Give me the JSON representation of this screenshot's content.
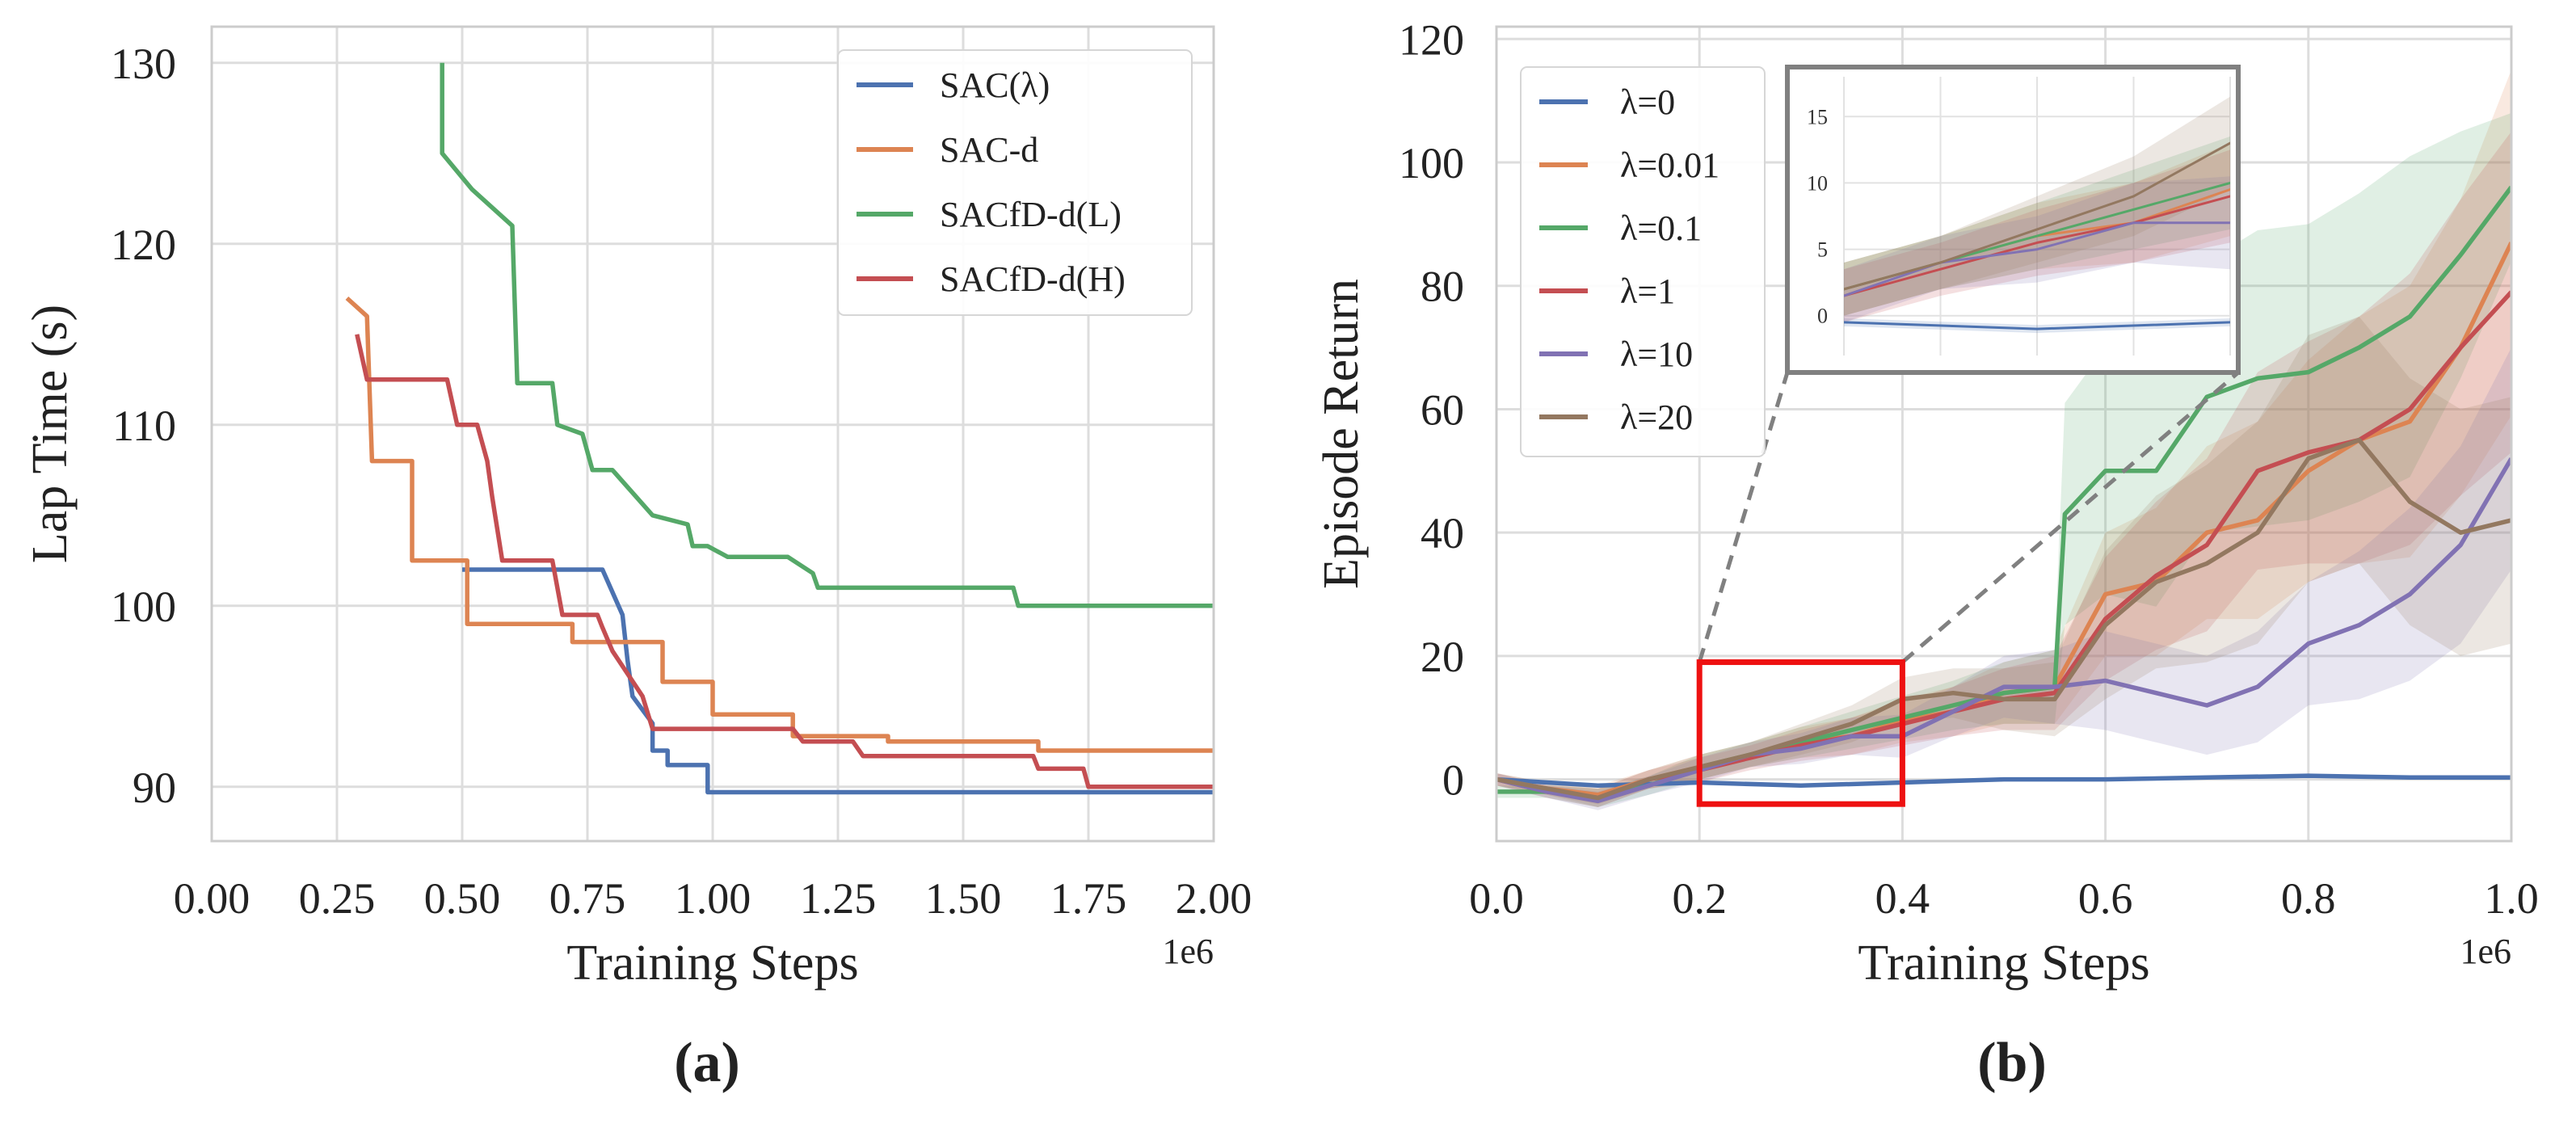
{
  "chart_data": [
    {
      "type": "line",
      "panel_label": "(a)",
      "xlabel": "Training Steps",
      "ylabel": "Lap Time (s)",
      "x_offset_text": "1e6",
      "xlim": [
        0,
        2.0
      ],
      "ylim": [
        87,
        132
      ],
      "x_ticks": [
        "0.00",
        "0.25",
        "0.50",
        "0.75",
        "1.00",
        "1.25",
        "1.50",
        "1.75",
        "2.00"
      ],
      "y_ticks": [
        "90",
        "100",
        "110",
        "120",
        "130"
      ],
      "grid": true,
      "legend_position": "upper right",
      "series": [
        {
          "name": "SAC(λ)",
          "color": "#4c72b0",
          "x": [
            0.5,
            0.78,
            0.82,
            0.83,
            0.84,
            0.88,
            0.88,
            0.91,
            0.91,
            0.99,
            0.99,
            2.0
          ],
          "y": [
            102,
            102,
            99.5,
            97,
            95,
            93.5,
            92,
            92,
            91.2,
            91.2,
            89.7,
            89.7
          ]
        },
        {
          "name": "SAC-d",
          "color": "#dd8452",
          "x": [
            0.27,
            0.31,
            0.32,
            0.4,
            0.4,
            0.51,
            0.51,
            0.72,
            0.72,
            0.9,
            0.9,
            1.0,
            1.0,
            1.16,
            1.16,
            1.35,
            1.35,
            1.65,
            1.65,
            2.0
          ],
          "y": [
            117,
            116,
            108,
            108,
            102.5,
            102.5,
            99,
            99,
            98,
            98,
            95.8,
            95.8,
            94,
            94,
            92.8,
            92.8,
            92.5,
            92.5,
            92,
            92
          ]
        },
        {
          "name": "SACfD-d(L)",
          "color": "#55a868",
          "x": [
            0.46,
            0.46,
            0.52,
            0.6,
            0.61,
            0.68,
            0.69,
            0.74,
            0.76,
            0.8,
            0.88,
            0.95,
            0.96,
            0.99,
            1.03,
            1.15,
            1.2,
            1.21,
            1.38,
            1.6,
            1.61,
            2.0
          ],
          "y": [
            130,
            125,
            123,
            121,
            112.3,
            112.3,
            110,
            109.5,
            107.5,
            107.5,
            105,
            104.5,
            103.3,
            103.3,
            102.7,
            102.7,
            101.8,
            101,
            101,
            101,
            100,
            100
          ]
        },
        {
          "name": "SACfD-d(H)",
          "color": "#c44e52",
          "x": [
            0.29,
            0.31,
            0.47,
            0.49,
            0.53,
            0.55,
            0.56,
            0.58,
            0.68,
            0.7,
            0.77,
            0.78,
            0.8,
            0.86,
            0.88,
            1.16,
            1.18,
            1.28,
            1.3,
            1.64,
            1.65,
            1.74,
            1.75,
            2.0
          ],
          "y": [
            115,
            112.5,
            112.5,
            110,
            110,
            108,
            106,
            102.5,
            102.5,
            99.5,
            99.5,
            98.8,
            97.5,
            95,
            93.2,
            93.2,
            92.5,
            92.5,
            91.7,
            91.7,
            91,
            91,
            90,
            90
          ]
        }
      ]
    },
    {
      "type": "line",
      "panel_label": "(b)",
      "xlabel": "Training Steps",
      "ylabel": "Episode Return",
      "x_offset_text": "1e6",
      "xlim": [
        0,
        1.0
      ],
      "ylim": [
        -10,
        122
      ],
      "x_ticks": [
        "0.0",
        "0.2",
        "0.4",
        "0.6",
        "0.8",
        "1.0"
      ],
      "y_ticks": [
        "0",
        "20",
        "40",
        "60",
        "80",
        "100",
        "120"
      ],
      "grid": true,
      "legend_position": "upper left",
      "zoom_box": {
        "xlim": [
          0.2,
          0.4
        ],
        "ylim": [
          -4,
          19
        ]
      },
      "inset": {
        "y_ticks": [
          "0",
          "5",
          "10",
          "15"
        ],
        "ylim": [
          -3,
          18
        ]
      },
      "series": [
        {
          "name": "λ=0",
          "color": "#4c72b0",
          "x": [
            0.0,
            0.1,
            0.2,
            0.3,
            0.4,
            0.5,
            0.6,
            0.7,
            0.8,
            0.9,
            1.0
          ],
          "y": [
            0,
            -1,
            -0.5,
            -1,
            -0.5,
            0,
            0,
            0.3,
            0.6,
            0.3,
            0.3
          ],
          "band": [
            0.3,
            0.3,
            0.3,
            0.3,
            0.3,
            0.3,
            0.3,
            0.3,
            0.3,
            0.3,
            0.3
          ]
        },
        {
          "name": "λ=0.01",
          "color": "#dd8452",
          "x": [
            0.0,
            0.05,
            0.1,
            0.15,
            0.2,
            0.25,
            0.3,
            0.35,
            0.4,
            0.45,
            0.5,
            0.55,
            0.6,
            0.65,
            0.7,
            0.75,
            0.8,
            0.85,
            0.9,
            0.95,
            1.0
          ],
          "y": [
            0,
            -1.5,
            -2.5,
            0,
            2,
            4,
            6,
            7,
            9.5,
            11,
            14,
            15,
            30,
            32,
            40,
            42,
            50,
            55,
            58,
            70,
            87
          ],
          "band": [
            1,
            1,
            1.5,
            1.5,
            2,
            2,
            2.5,
            3,
            3.5,
            4,
            5,
            6,
            10,
            12,
            14,
            16,
            18,
            20,
            22,
            24,
            28
          ]
        },
        {
          "name": "λ=0.1",
          "color": "#55a868",
          "x": [
            0.0,
            0.05,
            0.1,
            0.15,
            0.2,
            0.25,
            0.3,
            0.35,
            0.4,
            0.45,
            0.5,
            0.55,
            0.56,
            0.6,
            0.65,
            0.7,
            0.75,
            0.8,
            0.85,
            0.9,
            0.95,
            1.0
          ],
          "y": [
            -2,
            -2,
            -3,
            -1,
            2,
            4,
            6,
            8,
            10,
            12,
            14,
            15,
            43,
            50,
            50,
            62,
            65,
            66,
            70,
            75,
            85,
            96
          ],
          "band": [
            1,
            1,
            1.5,
            1.5,
            2,
            2,
            2.5,
            3,
            3.5,
            4,
            5,
            6,
            18,
            20,
            22,
            22,
            24,
            24,
            25,
            26,
            20,
            12
          ]
        },
        {
          "name": "λ=1",
          "color": "#c44e52",
          "x": [
            0.0,
            0.05,
            0.1,
            0.15,
            0.2,
            0.25,
            0.3,
            0.35,
            0.4,
            0.45,
            0.5,
            0.55,
            0.6,
            0.65,
            0.7,
            0.75,
            0.8,
            0.85,
            0.9,
            0.95,
            1.0
          ],
          "y": [
            0,
            -2,
            -3,
            0,
            1.5,
            3.5,
            5.5,
            7,
            9,
            11,
            13,
            14,
            26,
            33,
            38,
            50,
            53,
            55,
            60,
            70,
            79
          ],
          "band": [
            1,
            1,
            1.5,
            1.5,
            2,
            2,
            2.5,
            3,
            3.5,
            4,
            5,
            6,
            10,
            12,
            14,
            16,
            18,
            20,
            22,
            24,
            26
          ]
        },
        {
          "name": "λ=10",
          "color": "#8172b3",
          "x": [
            0.0,
            0.05,
            0.1,
            0.15,
            0.2,
            0.25,
            0.3,
            0.35,
            0.4,
            0.45,
            0.5,
            0.55,
            0.6,
            0.65,
            0.7,
            0.75,
            0.8,
            0.85,
            0.9,
            0.95,
            1.0
          ],
          "y": [
            0,
            -2,
            -3.5,
            -1,
            1.5,
            4,
            5,
            7,
            7,
            11,
            15,
            15,
            16,
            14,
            12,
            15,
            22,
            25,
            30,
            38,
            52
          ],
          "band": [
            1,
            1,
            1.5,
            1.5,
            2,
            2,
            2.5,
            3,
            3.5,
            4,
            5,
            6,
            8,
            8,
            8,
            9,
            10,
            12,
            14,
            16,
            18
          ]
        },
        {
          "name": "λ=20",
          "color": "#937860",
          "x": [
            0.0,
            0.05,
            0.1,
            0.15,
            0.2,
            0.25,
            0.3,
            0.35,
            0.4,
            0.45,
            0.5,
            0.55,
            0.6,
            0.65,
            0.7,
            0.75,
            0.8,
            0.85,
            0.9,
            0.95,
            1.0
          ],
          "y": [
            0,
            -1.5,
            -3,
            0,
            2,
            4,
            6.5,
            9,
            13,
            14,
            13,
            13,
            25,
            32,
            35,
            40,
            52,
            55,
            45,
            40,
            42
          ],
          "band": [
            1,
            1,
            1.5,
            1.5,
            2,
            2,
            2.5,
            3,
            3.5,
            4,
            5,
            6,
            12,
            14,
            16,
            18,
            20,
            20,
            20,
            20,
            20
          ]
        }
      ]
    }
  ]
}
